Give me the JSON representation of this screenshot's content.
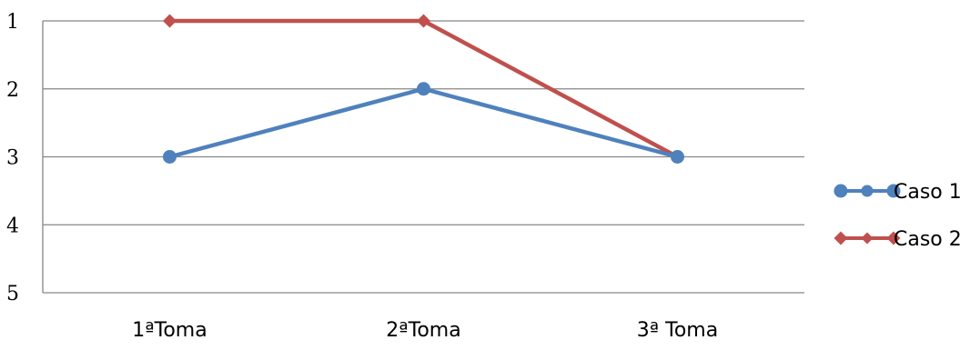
{
  "chart_data": {
    "type": "line",
    "title": "",
    "xlabel": "",
    "ylabel": "",
    "categories": [
      "1ªToma",
      "2ªToma",
      "3ª Toma"
    ],
    "y_ticks": [
      "1",
      "2",
      "3",
      "4",
      "5"
    ],
    "ylim": [
      1,
      5
    ],
    "y_reversed": true,
    "grid": true,
    "legend_position": "right",
    "series": [
      {
        "name": "Caso 1",
        "values": [
          3,
          2,
          3
        ],
        "color": "#4F81BD",
        "marker": "circle"
      },
      {
        "name": "Caso 2",
        "values": [
          1,
          1,
          3
        ],
        "color": "#C0504D",
        "marker": "diamond"
      }
    ]
  }
}
